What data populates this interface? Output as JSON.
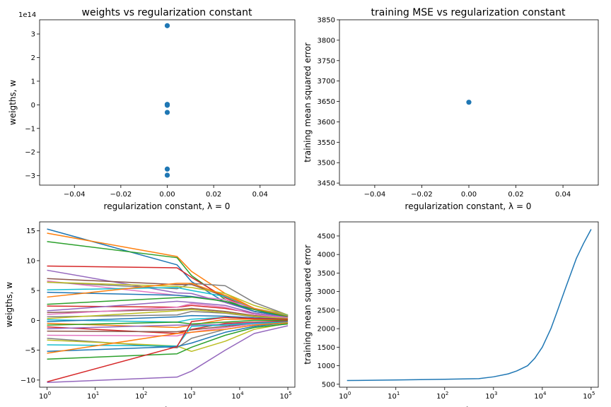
{
  "chart_data": [
    {
      "type": "scatter",
      "title": "weights vs regularization constant",
      "xlabel": "regularization constant, λ = 0",
      "ylabel": "weigths, w",
      "xlim": [
        -0.055,
        0.055
      ],
      "ylim": [
        -3.4,
        3.6
      ],
      "offset_text": "1e14",
      "x_ticks": [
        "−0.04",
        "−0.02",
        "0.00",
        "0.02",
        "0.04"
      ],
      "y_ticks": [
        "−3",
        "−2",
        "−1",
        "0",
        "1",
        "2",
        "3"
      ],
      "points": [
        {
          "x": 0,
          "y": 3.35
        },
        {
          "x": 0,
          "y": 0.02
        },
        {
          "x": 0,
          "y": 0.0
        },
        {
          "x": 0,
          "y": -0.02
        },
        {
          "x": 0,
          "y": -0.32
        },
        {
          "x": 0,
          "y": -2.72
        },
        {
          "x": 0,
          "y": -2.98
        }
      ],
      "color": "#1f77b4",
      "grid": false
    },
    {
      "type": "scatter",
      "title": "training MSE vs regularization constant",
      "xlabel": "regularization constant, λ = 0",
      "ylabel": "training mean squared error",
      "xlim": [
        -0.055,
        0.055
      ],
      "ylim": [
        3445,
        3850
      ],
      "x_ticks": [
        "−0.04",
        "−0.02",
        "0.00",
        "0.02",
        "0.04"
      ],
      "y_ticks": [
        "3450",
        "3500",
        "3550",
        "3600",
        "3650",
        "3700",
        "3750",
        "3800",
        "3850"
      ],
      "points": [
        {
          "x": 0,
          "y": 3648
        }
      ],
      "color": "#1f77b4",
      "grid": false
    },
    {
      "type": "line",
      "log_x": true,
      "ylabel": "weigths, w",
      "xlabel": "λ",
      "xlim": [
        0.7,
        140000
      ],
      "ylim": [
        -11.2,
        16.5
      ],
      "x_ticks": [
        {
          "base": "10",
          "exp": "0"
        },
        {
          "base": "10",
          "exp": "1"
        },
        {
          "base": "10",
          "exp": "2"
        },
        {
          "base": "10",
          "exp": "3"
        },
        {
          "base": "10",
          "exp": "4"
        },
        {
          "base": "10",
          "exp": "5"
        }
      ],
      "y_ticks": [
        "−10",
        "−5",
        "0",
        "5",
        "10",
        "15"
      ],
      "x": [
        1,
        500,
        1000,
        5000,
        20000,
        100000
      ],
      "palette": [
        "#1f77b4",
        "#ff7f0e",
        "#2ca02c",
        "#d62728",
        "#9467bd",
        "#8c564b",
        "#e377c2",
        "#7f7f7f",
        "#bcbd22",
        "#17becf"
      ],
      "series": [
        {
          "values": [
            15.3,
            9.3,
            6.5,
            3.0,
            1.5,
            0.9
          ]
        },
        {
          "values": [
            14.6,
            10.7,
            8.2,
            4.5,
            2.0,
            0.9
          ]
        },
        {
          "values": [
            13.2,
            10.5,
            7.5,
            3.5,
            1.5,
            0.7
          ]
        },
        {
          "values": [
            9.1,
            8.8,
            7.2,
            3.8,
            1.8,
            0.8
          ]
        },
        {
          "values": [
            8.4,
            4.6,
            4.5,
            3.0,
            1.5,
            0.6
          ]
        },
        {
          "values": [
            7.0,
            6.0,
            6.0,
            4.0,
            2.0,
            0.7
          ]
        },
        {
          "values": [
            6.6,
            4.2,
            4.0,
            3.5,
            2.0,
            0.8
          ]
        },
        {
          "values": [
            6.4,
            5.3,
            6.2,
            5.8,
            3.0,
            0.9
          ]
        },
        {
          "values": [
            6.4,
            5.7,
            5.5,
            4.5,
            2.5,
            0.9
          ]
        },
        {
          "values": [
            5.1,
            5.5,
            5.0,
            4.0,
            2.0,
            0.8
          ]
        },
        {
          "values": [
            4.7,
            4.2,
            4.0,
            3.2,
            1.5,
            0.6
          ]
        },
        {
          "values": [
            3.9,
            6.2,
            6.2,
            4.2,
            2.0,
            0.7
          ]
        },
        {
          "values": [
            2.7,
            3.8,
            3.9,
            3.2,
            1.8,
            0.6
          ]
        },
        {
          "values": [
            2.4,
            2.2,
            2.5,
            2.0,
            1.2,
            0.5
          ]
        },
        {
          "values": [
            1.6,
            3.2,
            3.0,
            2.5,
            1.2,
            0.5
          ]
        },
        {
          "values": [
            1.3,
            1.8,
            2.0,
            1.5,
            0.8,
            0.4
          ]
        },
        {
          "values": [
            1.0,
            2.2,
            2.8,
            2.2,
            1.0,
            0.4
          ]
        },
        {
          "values": [
            0.6,
            0.9,
            1.5,
            1.2,
            0.6,
            0.3
          ]
        },
        {
          "values": [
            0.3,
            1.6,
            1.8,
            1.3,
            0.7,
            0.3
          ]
        },
        {
          "values": [
            0.1,
            -0.3,
            0.2,
            0.5,
            0.3,
            0.2
          ]
        },
        {
          "values": [
            -0.2,
            0.6,
            0.8,
            0.7,
            0.4,
            0.2
          ]
        },
        {
          "values": [
            -0.5,
            -1.2,
            -0.8,
            0.2,
            0.2,
            0.1
          ]
        },
        {
          "values": [
            -0.8,
            -0.3,
            -0.6,
            -0.3,
            0.0,
            0.0
          ]
        },
        {
          "values": [
            -1.1,
            -2.2,
            -1.5,
            -0.5,
            -0.3,
            -0.1
          ]
        },
        {
          "values": [
            -1.4,
            -0.8,
            -0.8,
            -0.7,
            -0.4,
            -0.2
          ]
        },
        {
          "values": [
            -1.8,
            -1.9,
            -1.6,
            -1.0,
            -0.5,
            -0.2
          ]
        },
        {
          "values": [
            -2.5,
            -2.6,
            -2.0,
            -1.2,
            -0.6,
            -0.3
          ]
        },
        {
          "values": [
            -3.0,
            -4.6,
            -3.0,
            -1.5,
            -0.8,
            -0.3
          ]
        },
        {
          "values": [
            -3.3,
            -4.3,
            -5.2,
            -3.5,
            -1.5,
            -0.5
          ]
        },
        {
          "values": [
            -4.1,
            -4.3,
            -1.0,
            -0.8,
            -0.5,
            -0.3
          ]
        },
        {
          "values": [
            -5.2,
            -4.4,
            -3.8,
            -2.0,
            -1.0,
            -0.4
          ]
        },
        {
          "values": [
            -5.5,
            -2.2,
            -2.0,
            -1.5,
            -0.8,
            -0.4
          ]
        },
        {
          "values": [
            -6.5,
            -5.6,
            -4.5,
            -2.5,
            -1.2,
            -0.6
          ]
        },
        {
          "values": [
            -10.3,
            -4.4,
            -0.2,
            0.5,
            0.3,
            0.2
          ]
        },
        {
          "values": [
            -10.4,
            -9.5,
            -8.5,
            -5.0,
            -2.2,
            -0.9
          ]
        }
      ],
      "grid": false
    },
    {
      "type": "line",
      "log_x": true,
      "ylabel": "training mean squared error",
      "xlabel": "λ",
      "xlim": [
        0.7,
        140000
      ],
      "ylim": [
        420,
        4880
      ],
      "x_ticks": [
        {
          "base": "10",
          "exp": "0"
        },
        {
          "base": "10",
          "exp": "1"
        },
        {
          "base": "10",
          "exp": "2"
        },
        {
          "base": "10",
          "exp": "3"
        },
        {
          "base": "10",
          "exp": "4"
        },
        {
          "base": "10",
          "exp": "5"
        }
      ],
      "y_ticks": [
        "500",
        "1000",
        "1500",
        "2000",
        "2500",
        "3000",
        "3500",
        "4000",
        "4500"
      ],
      "x": [
        1,
        10,
        100,
        500,
        1000,
        2000,
        3000,
        5000,
        7000,
        10000,
        15000,
        20000,
        30000,
        50000,
        70000,
        100000
      ],
      "series": [
        {
          "values": [
            600,
            615,
            635,
            650,
            700,
            780,
            860,
            1000,
            1200,
            1500,
            2000,
            2450,
            3100,
            3900,
            4300,
            4680
          ]
        }
      ],
      "color": "#1f77b4",
      "grid": false
    }
  ]
}
